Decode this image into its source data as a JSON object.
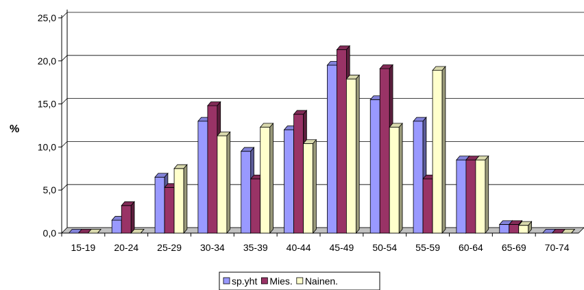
{
  "chart_data": {
    "type": "bar",
    "title": "",
    "xlabel": "",
    "ylabel": "%",
    "ylim": [
      0,
      25
    ],
    "yticks": [
      "0,0",
      "5,0",
      "10,0",
      "15,0",
      "20,0",
      "25,0"
    ],
    "grid": true,
    "legend_position": "bottom",
    "categories": [
      "15-19",
      "20-24",
      "25-29",
      "30-34",
      "35-39",
      "40-44",
      "45-49",
      "50-54",
      "55-59",
      "60-64",
      "65-69",
      "70-74"
    ],
    "series": [
      {
        "name": "sp.yht",
        "color": "#9999ff",
        "values": [
          0,
          1.5,
          6.5,
          13,
          9.5,
          12,
          19.5,
          15.5,
          13,
          8.5,
          1,
          0
        ]
      },
      {
        "name": "Mies.",
        "color": "#993366",
        "values": [
          0,
          3.2,
          5.3,
          14.8,
          6.3,
          13.8,
          21.3,
          19.1,
          6.3,
          8.5,
          1,
          0
        ]
      },
      {
        "name": "Nainen.",
        "color": "#ffffcc",
        "values": [
          0,
          0,
          7.5,
          11.3,
          12.3,
          10.4,
          17.9,
          12.3,
          18.9,
          8.5,
          0.9,
          0
        ]
      }
    ]
  }
}
